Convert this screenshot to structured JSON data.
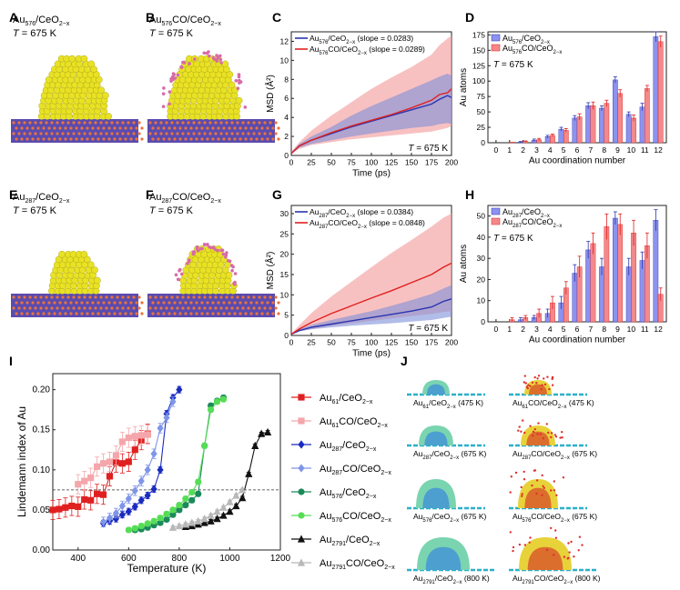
{
  "panel_labels": [
    "A",
    "B",
    "C",
    "D",
    "E",
    "F",
    "G",
    "H",
    "I",
    "J"
  ],
  "struct_panels": [
    {
      "id": "A",
      "title_base": "Au",
      "title_sub": "576",
      "title_rest": "/CeO",
      "title_sub2": "2−x",
      "temp_label": "T = 675 K",
      "has_co": false
    },
    {
      "id": "B",
      "title_base": "Au",
      "title_sub": "576",
      "title_rest": "CO/CeO",
      "title_sub2": "2−x",
      "temp_label": "T = 675 K",
      "has_co": true
    },
    {
      "id": "E",
      "title_base": "Au",
      "title_sub": "287",
      "title_rest": "/CeO",
      "title_sub2": "2−x",
      "temp_label": "T = 675 K",
      "has_co": false
    },
    {
      "id": "F",
      "title_base": "Au",
      "title_sub": "287",
      "title_rest": "CO/CeO",
      "title_sub2": "2−x",
      "temp_label": "T = 675 K",
      "has_co": true
    }
  ],
  "colors": {
    "blue": "#2a35b0",
    "red": "#e02020",
    "blue_band": "#7f8fd8",
    "red_band": "#f4a0a0",
    "bar_blue": "#8c92ee",
    "bar_red": "#f3898b",
    "au_yellow": "#e9e224",
    "support_purple": "#5a4bb0",
    "support_orange": "#e8743b",
    "co_pink": "#d76aa8"
  },
  "j_labels": [
    [
      "Au",
      "61",
      "/CeO",
      "2−x",
      " (475 K)"
    ],
    [
      "Au",
      "61",
      "CO/CeO",
      "2−x",
      " (475 K)"
    ],
    [
      "Au",
      "287",
      "/CeO",
      "2−x",
      " (675 K)"
    ],
    [
      "Au",
      "287",
      "CO/CeO",
      "2−x",
      " (675 K)"
    ],
    [
      "Au",
      "576",
      "/CeO",
      "2−x",
      " (675 K)"
    ],
    [
      "Au",
      "576",
      "CO/CeO",
      "2−x",
      " (675 K)"
    ],
    [
      "Au",
      "2791",
      "/CeO",
      "2−x",
      " (800 K)"
    ],
    [
      "Au",
      "2791",
      "CO/CeO",
      "2−x",
      " (800 K)"
    ]
  ],
  "chart_data": [
    {
      "id": "C",
      "type": "line",
      "xlabel": "Time (ps)",
      "ylabel": "MSD (Å²)",
      "xlim": [
        0,
        200
      ],
      "ylim": [
        0,
        13
      ],
      "xticks": [
        0,
        25,
        50,
        75,
        100,
        125,
        150,
        175,
        200
      ],
      "yticks": [
        0,
        2,
        4,
        6,
        8,
        10,
        12
      ],
      "annotation": "T = 675 K",
      "legend": [
        {
          "base": "Au",
          "sub": "576",
          "rest": "/CeO",
          "sub2": "2−x",
          "tail": " (slope = 0.0283)"
        },
        {
          "base": "Au",
          "sub": "576",
          "rest": "CO/CeO",
          "sub2": "2−x",
          "tail": " (slope = 0.0289)"
        }
      ],
      "series": [
        {
          "name": "Au576/CeO2−x",
          "x": [
            0,
            10,
            25,
            50,
            75,
            100,
            125,
            150,
            175,
            185,
            195,
            200
          ],
          "y": [
            0.2,
            1.0,
            1.6,
            2.3,
            3.0,
            3.6,
            4.2,
            4.8,
            5.4,
            5.9,
            6.3,
            6.1
          ],
          "lo": [
            0.2,
            0.8,
            1.2,
            1.6,
            2.0,
            2.3,
            2.6,
            2.9,
            3.1,
            3.3,
            3.4,
            3.3
          ],
          "hi": [
            0.3,
            1.2,
            2.0,
            3.0,
            4.2,
            5.2,
            6.1,
            7.0,
            7.9,
            8.3,
            8.6,
            8.4
          ]
        },
        {
          "name": "Au576CO/CeO2−x",
          "x": [
            0,
            10,
            25,
            50,
            75,
            100,
            125,
            150,
            175,
            185,
            195,
            200
          ],
          "y": [
            0.2,
            1.0,
            1.6,
            2.4,
            3.1,
            3.7,
            4.3,
            5.0,
            5.8,
            6.4,
            6.6,
            7.0
          ],
          "lo": [
            0.2,
            0.7,
            1.1,
            1.4,
            1.7,
            1.9,
            2.1,
            2.3,
            2.5,
            2.7,
            2.9,
            3.1
          ],
          "hi": [
            0.4,
            1.4,
            2.6,
            4.2,
            5.6,
            7.0,
            8.2,
            9.3,
            10.6,
            11.6,
            12.3,
            12.6
          ]
        }
      ]
    },
    {
      "id": "D",
      "type": "bar",
      "xlabel": "Au coordination number",
      "ylabel": "Au atoms",
      "ylim": [
        0,
        180
      ],
      "yticks": [
        0,
        25,
        50,
        75,
        100,
        125,
        150,
        175
      ],
      "categories": [
        "0",
        "1",
        "2",
        "3",
        "4",
        "5",
        "6",
        "7",
        "8",
        "9",
        "10",
        "11",
        "12"
      ],
      "annotation": "T = 675 K",
      "legend": [
        {
          "base": "Au",
          "sub": "576",
          "rest": "/CeO",
          "sub2": "2−x"
        },
        {
          "base": "Au",
          "sub": "576",
          "rest": "CO/CeO",
          "sub2": "2−x"
        }
      ],
      "series": [
        {
          "name": "Au576/CeO2−x",
          "values": [
            0,
            0,
            1,
            4,
            10,
            22,
            40,
            60,
            56,
            102,
            46,
            58,
            172
          ],
          "err": [
            0,
            0,
            1,
            2,
            2,
            3,
            4,
            5,
            4,
            5,
            4,
            6,
            8
          ]
        },
        {
          "name": "Au576CO/CeO2−x",
          "values": [
            0,
            1,
            2,
            5,
            12,
            20,
            42,
            60,
            64,
            80,
            40,
            88,
            164
          ],
          "err": [
            0,
            0,
            1,
            2,
            2,
            3,
            5,
            6,
            5,
            6,
            5,
            5,
            9
          ]
        }
      ]
    },
    {
      "id": "G",
      "type": "line",
      "xlabel": "Time (ps)",
      "ylabel": "MSD (Å²)",
      "xlim": [
        0,
        200
      ],
      "ylim": [
        0,
        32
      ],
      "xticks": [
        0,
        25,
        50,
        75,
        100,
        125,
        150,
        175,
        200
      ],
      "yticks": [
        0,
        5,
        10,
        15,
        20,
        25,
        30
      ],
      "annotation": "T = 675 K",
      "legend": [
        {
          "base": "Au",
          "sub": "287",
          "rest": "/CeO",
          "sub2": "2−x",
          "tail": " (slope = 0.0384)"
        },
        {
          "base": "Au",
          "sub": "287",
          "rest": "CO/CeO",
          "sub2": "2−x",
          "tail": " (slope = 0.0848)"
        }
      ],
      "series": [
        {
          "name": "Au287/CeO2−x",
          "x": [
            0,
            10,
            25,
            50,
            75,
            100,
            125,
            150,
            175,
            190,
            200
          ],
          "y": [
            0.3,
            1.2,
            2.0,
            2.8,
            3.6,
            4.4,
            5.2,
            6.0,
            7.0,
            8.4,
            9.0
          ],
          "lo": [
            0.3,
            1.0,
            1.5,
            2.0,
            2.4,
            2.7,
            3.0,
            3.4,
            3.8,
            4.3,
            4.6
          ],
          "hi": [
            0.4,
            1.5,
            2.6,
            3.8,
            4.9,
            6.0,
            7.3,
            8.7,
            10.2,
            11.6,
            12.4
          ]
        },
        {
          "name": "Au287CO/CeO2−x",
          "x": [
            0,
            10,
            25,
            50,
            75,
            100,
            125,
            150,
            175,
            190,
            200
          ],
          "y": [
            0.3,
            1.6,
            3.2,
            5.4,
            7.3,
            9.2,
            11.0,
            13.0,
            15.0,
            16.8,
            17.8
          ],
          "lo": [
            0.3,
            1.0,
            1.6,
            2.4,
            3.0,
            3.6,
            4.2,
            4.8,
            5.3,
            5.8,
            6.0
          ],
          "hi": [
            0.5,
            2.5,
            5.5,
            9.6,
            13.2,
            16.8,
            20.3,
            23.5,
            26.8,
            29.0,
            30.0
          ]
        }
      ]
    },
    {
      "id": "H",
      "type": "bar",
      "xlabel": "Au coordination number",
      "ylabel": "Au atoms",
      "ylim": [
        0,
        55
      ],
      "yticks": [
        0,
        10,
        20,
        30,
        40,
        50
      ],
      "categories": [
        "0",
        "1",
        "2",
        "3",
        "4",
        "5",
        "6",
        "7",
        "8",
        "9",
        "10",
        "11",
        "12"
      ],
      "annotation": "T = 675 K",
      "legend": [
        {
          "base": "Au",
          "sub": "287",
          "rest": "/CeO",
          "sub2": "2−x"
        },
        {
          "base": "Au",
          "sub": "287",
          "rest": "CO/CeO",
          "sub2": "2−x"
        }
      ],
      "series": [
        {
          "name": "Au287/CeO2−x",
          "values": [
            0,
            0,
            1,
            2,
            4,
            9,
            23,
            34,
            26,
            49,
            26,
            29,
            48
          ],
          "err": [
            0,
            0,
            1,
            1,
            2,
            3,
            4,
            4,
            4,
            3,
            4,
            4,
            5
          ]
        },
        {
          "name": "Au287CO/CeO2−x",
          "values": [
            0,
            1,
            2,
            4,
            9,
            16,
            26,
            37,
            45,
            46,
            42,
            36,
            13
          ],
          "err": [
            0,
            1,
            1,
            2,
            3,
            3,
            5,
            5,
            6,
            5,
            6,
            6,
            3
          ]
        }
      ]
    },
    {
      "id": "I",
      "type": "line",
      "xlabel": "Temperature (K)",
      "ylabel": "Lindemann index of Au",
      "xlim": [
        300,
        1200
      ],
      "ylim": [
        0,
        0.22
      ],
      "xticks": [
        400,
        600,
        800,
        1000,
        1200
      ],
      "yticks": [
        0.0,
        0.05,
        0.1,
        0.15,
        0.2
      ],
      "reference_line": 0.075,
      "series": [
        {
          "name": "Au61/CeO2−x",
          "base": "Au",
          "sub": "61",
          "rest": "/CeO",
          "sub2": "2−x",
          "color": "#e02020",
          "marker": "square",
          "x": [
            300,
            325,
            350,
            375,
            400,
            425,
            450,
            475,
            500,
            525,
            550,
            575,
            600,
            625,
            650,
            675
          ],
          "y": [
            0.05,
            0.051,
            0.053,
            0.055,
            0.054,
            0.063,
            0.062,
            0.07,
            0.069,
            0.092,
            0.109,
            0.108,
            0.11,
            0.125,
            0.137,
            0.145
          ],
          "err": 0.012
        },
        {
          "name": "Au61CO/CeO2−x",
          "base": "Au",
          "sub": "61",
          "rest": "CO/CeO",
          "sub2": "2−x",
          "color": "#f4a6ab",
          "marker": "square",
          "x": [
            400,
            425,
            450,
            475,
            500,
            525,
            550,
            575,
            600,
            625,
            650,
            675
          ],
          "y": [
            0.082,
            0.086,
            0.09,
            0.104,
            0.108,
            0.11,
            0.118,
            0.135,
            0.14,
            0.142,
            0.143,
            0.144
          ],
          "err": 0.012
        },
        {
          "name": "Au287/CeO2−x",
          "base": "Au",
          "sub": "287",
          "rest": "/CeO",
          "sub2": "2−x",
          "color": "#1a2bc0",
          "marker": "diamond",
          "x": [
            500,
            525,
            550,
            575,
            600,
            625,
            650,
            675,
            700,
            725,
            750,
            775,
            800
          ],
          "y": [
            0.033,
            0.036,
            0.039,
            0.044,
            0.048,
            0.054,
            0.062,
            0.068,
            0.076,
            0.1,
            0.17,
            0.19,
            0.2
          ],
          "err": 0.004
        },
        {
          "name": "Au287CO/CeO2−x",
          "base": "Au",
          "sub": "287",
          "rest": "CO/CeO",
          "sub2": "2−x",
          "color": "#7f95e8",
          "marker": "diamond",
          "x": [
            500,
            525,
            550,
            575,
            600,
            625,
            650,
            675,
            700,
            725,
            750,
            775
          ],
          "y": [
            0.035,
            0.04,
            0.046,
            0.055,
            0.064,
            0.074,
            0.086,
            0.1,
            0.12,
            0.152,
            0.165,
            0.185
          ],
          "err": 0.006
        },
        {
          "name": "Au576/CeO2−x",
          "base": "Au",
          "sub": "576",
          "rest": "/CeO",
          "sub2": "2−x",
          "color": "#1b8a5a",
          "marker": "circle",
          "x": [
            625,
            650,
            675,
            700,
            725,
            750,
            775,
            800,
            825,
            850,
            875,
            900,
            925,
            950,
            975
          ],
          "y": [
            0.025,
            0.026,
            0.028,
            0.031,
            0.034,
            0.038,
            0.044,
            0.05,
            0.056,
            0.062,
            0.07,
            0.13,
            0.18,
            0.186,
            0.19
          ],
          "err": 0.003
        },
        {
          "name": "Au576CO/CeO2−x",
          "base": "Au",
          "sub": "576",
          "rest": "CO/CeO",
          "sub2": "2−x",
          "color": "#55dd55",
          "marker": "circle",
          "x": [
            600,
            625,
            650,
            675,
            700,
            725,
            750,
            775,
            800,
            825,
            850,
            875,
            900,
            925,
            950,
            975
          ],
          "y": [
            0.025,
            0.027,
            0.03,
            0.033,
            0.036,
            0.04,
            0.045,
            0.05,
            0.056,
            0.064,
            0.072,
            0.085,
            0.13,
            0.175,
            0.185,
            0.188
          ],
          "err": 0.003
        },
        {
          "name": "Au2791/CeO2−x",
          "base": "Au",
          "sub": "2791",
          "rest": "/CeO",
          "sub2": "2−x",
          "color": "#111111",
          "marker": "triangle",
          "x": [
            825,
            850,
            875,
            900,
            925,
            950,
            975,
            1000,
            1025,
            1050,
            1075,
            1100,
            1125,
            1150
          ],
          "y": [
            0.029,
            0.03,
            0.032,
            0.034,
            0.036,
            0.039,
            0.043,
            0.048,
            0.055,
            0.065,
            0.095,
            0.13,
            0.145,
            0.147
          ],
          "err": 0.002
        },
        {
          "name": "Au2791CO/CeO2−x",
          "base": "Au",
          "sub": "2791",
          "rest": "CO/CeO",
          "sub2": "2−x",
          "color": "#b8b8b8",
          "marker": "triangle",
          "x": [
            775,
            800,
            825,
            850,
            875,
            900,
            925,
            950,
            975,
            1000,
            1025,
            1050
          ],
          "y": [
            0.028,
            0.03,
            0.032,
            0.034,
            0.036,
            0.039,
            0.043,
            0.048,
            0.053,
            0.06,
            0.068,
            0.075
          ],
          "err": 0.002
        }
      ]
    }
  ]
}
